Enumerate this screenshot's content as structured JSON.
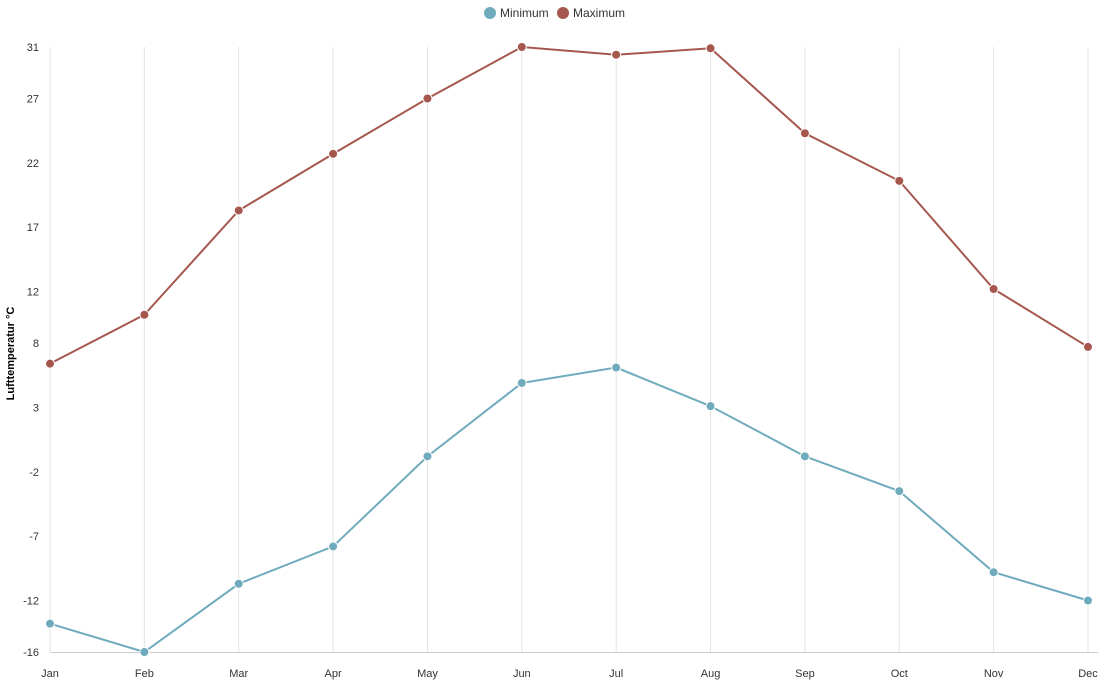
{
  "chart_data": {
    "type": "line",
    "title": "",
    "xlabel": "",
    "ylabel": "Lufttemperatur °C",
    "categories": [
      "Jan",
      "Feb",
      "Mar",
      "Apr",
      "May",
      "Jun",
      "Jul",
      "Aug",
      "Sep",
      "Oct",
      "Nov",
      "Dec"
    ],
    "yticks": [
      "31",
      "27",
      "22",
      "17",
      "12",
      "8",
      "3",
      "-2",
      "-7",
      "-12",
      "-16"
    ],
    "ylim": [
      -16,
      31
    ],
    "grid": "vertical",
    "legend_position": "top-center",
    "series": [
      {
        "name": "Minimum",
        "color": "#6fabbd",
        "values": [
          -13.8,
          -16.0,
          -10.7,
          -7.8,
          -0.8,
          4.9,
          6.1,
          3.1,
          -0.8,
          -3.5,
          -9.8,
          -12.0
        ]
      },
      {
        "name": "Maximum",
        "color": "#a6574d",
        "values": [
          6.4,
          10.2,
          18.3,
          22.7,
          27.0,
          31.0,
          30.4,
          30.9,
          24.3,
          20.6,
          12.2,
          7.7
        ]
      }
    ]
  }
}
